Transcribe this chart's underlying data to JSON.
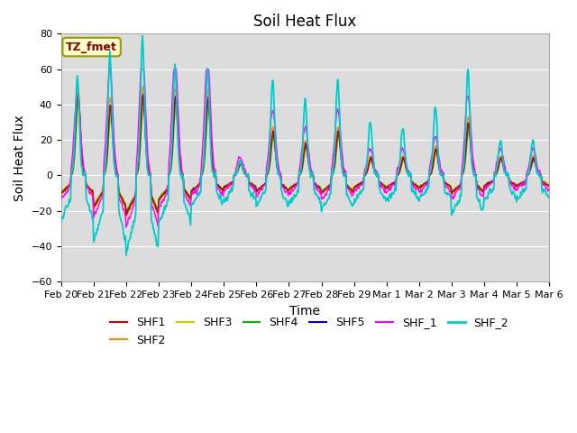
{
  "title": "Soil Heat Flux",
  "ylabel": "Soil Heat Flux",
  "xlabel": "Time",
  "ylim": [
    -60,
    80
  ],
  "series_colors": {
    "SHF1": "#cc0000",
    "SHF2": "#ff8800",
    "SHF3": "#cccc00",
    "SHF4": "#00bb00",
    "SHF5": "#0000cc",
    "SHF_1": "#ff00ff",
    "SHF_2": "#00cccc"
  },
  "legend_label": "TZ_fmet",
  "background_color": "#dcdcdc",
  "title_fontsize": 12,
  "axis_fontsize": 10,
  "tick_fontsize": 8,
  "grid_color": "#ffffff",
  "n_days": 15,
  "n_per_day": 48,
  "peak_amplitudes": [
    55,
    70,
    78,
    62,
    60,
    8,
    54,
    42,
    54,
    30,
    27,
    38,
    60,
    20,
    20
  ],
  "shf_peak_amplitudes": [
    47,
    40,
    46,
    45,
    44,
    7,
    25,
    18,
    25,
    10,
    10,
    15,
    30,
    10,
    10
  ],
  "shf2_night_mins": [
    -25,
    -38,
    -44,
    -27,
    -17,
    -14,
    -17,
    -16,
    -19,
    -15,
    -14,
    -14,
    -22,
    -13,
    -13
  ]
}
